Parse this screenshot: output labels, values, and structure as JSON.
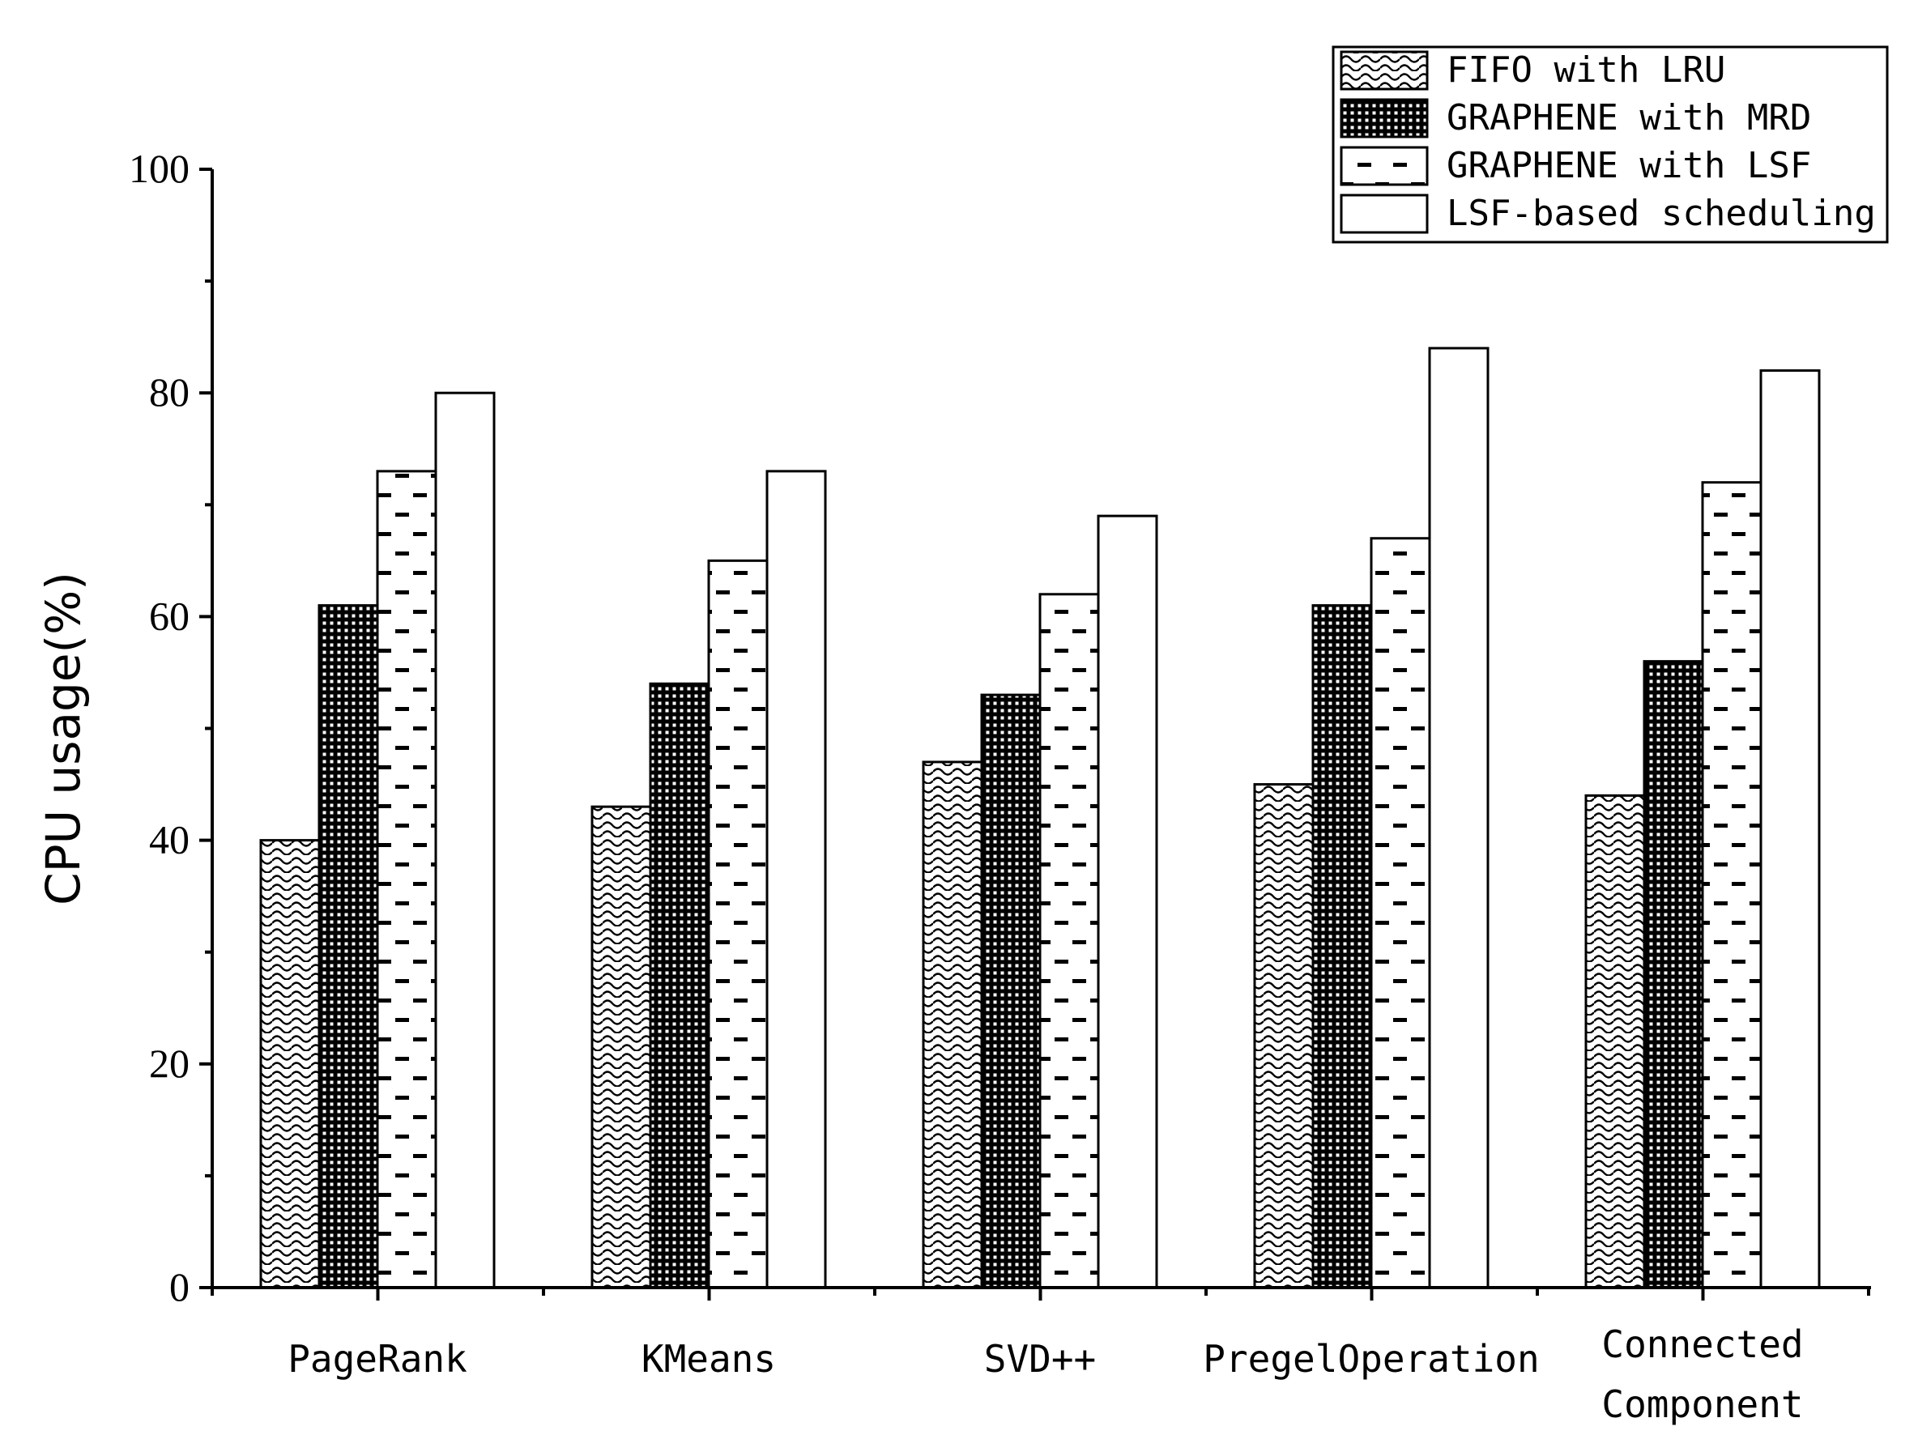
{
  "chart_data": {
    "type": "bar",
    "title": "",
    "xlabel": "",
    "ylabel": "CPU usage(%)",
    "ylim": [
      0,
      100
    ],
    "yticks": [
      0,
      20,
      40,
      60,
      80,
      100
    ],
    "grid": false,
    "legend_position": "top-right",
    "categories": [
      [
        "PageRank"
      ],
      [
        "KMeans"
      ],
      [
        "SVD++"
      ],
      [
        "PregelOperation"
      ],
      [
        "Connected",
        "Component"
      ]
    ],
    "series": [
      {
        "name": "FIFO with LRU",
        "pattern": "wave",
        "values": [
          40,
          43,
          47,
          45,
          44
        ]
      },
      {
        "name": "GRAPHENE with MRD",
        "pattern": "dots",
        "values": [
          61,
          54,
          53,
          61,
          56
        ]
      },
      {
        "name": "GRAPHENE with LSF",
        "pattern": "dashes",
        "values": [
          73,
          65,
          62,
          67,
          72
        ]
      },
      {
        "name": "LSF-based scheduling",
        "pattern": "plain",
        "values": [
          80,
          73,
          69,
          84,
          82
        ]
      }
    ],
    "colors": {
      "axis": "#000000",
      "background": "#ffffff",
      "bar_fill": "#ffffff"
    }
  }
}
